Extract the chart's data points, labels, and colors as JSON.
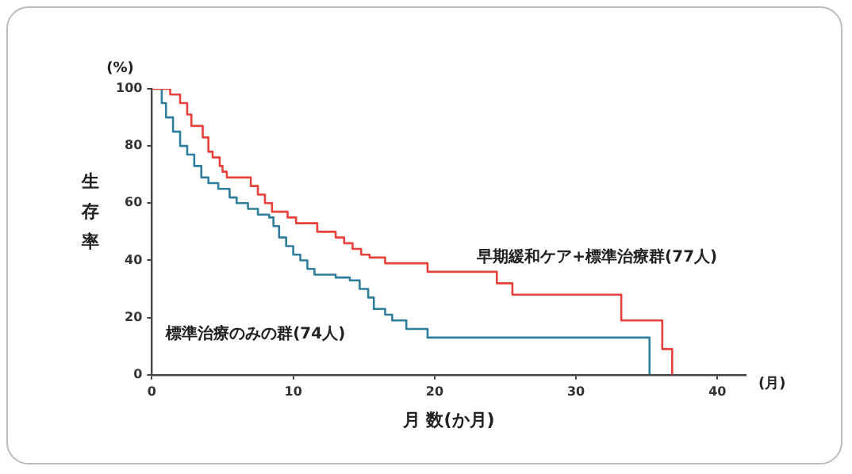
{
  "chart_data": {
    "type": "step",
    "xlabel": "月 数(か月)",
    "ylabel": "生存率",
    "annotations": [
      "(%)",
      "(月)"
    ],
    "xlim": [
      0,
      42
    ],
    "xticks": [
      0,
      10,
      20,
      30,
      40
    ],
    "ylim": [
      0,
      100
    ],
    "yticks": [
      0,
      20,
      40,
      60,
      80,
      100
    ],
    "grid": false,
    "legend": false,
    "marker": "none",
    "line_style": "solid",
    "series": [
      {
        "name": "早期緩和ケア+標準治療群(77人)",
        "color": "#e8403a",
        "x": [
          0,
          1.3,
          2,
          2.5,
          2.8,
          3.6,
          4,
          4.3,
          4.8,
          5,
          5.3,
          7,
          7.5,
          8,
          8.5,
          9.6,
          10.2,
          11.7,
          13,
          13.6,
          14.2,
          14.8,
          15.4,
          16.5,
          19.5,
          24.4,
          25.5,
          33.2,
          36.1,
          36.8
        ],
        "values": [
          100,
          98,
          95,
          91,
          87,
          83,
          78,
          76,
          73,
          71,
          69,
          66,
          63,
          60,
          57,
          55,
          53,
          50,
          48,
          46,
          44,
          42,
          41,
          39,
          36,
          32,
          28,
          19,
          9,
          0
        ]
      },
      {
        "name": "標準治療のみの群(74人)",
        "color": "#2e7d9a",
        "x": [
          0,
          0.7,
          1,
          1.5,
          2,
          2.5,
          3,
          3.5,
          4,
          4.7,
          5.5,
          6,
          6.8,
          7.5,
          8.3,
          8.6,
          9,
          9.5,
          10,
          10.5,
          11,
          11.5,
          13,
          14,
          14.7,
          15.3,
          15.7,
          16.5,
          17,
          18,
          19.5,
          35.2
        ],
        "values": [
          100,
          95,
          90,
          85,
          80,
          77,
          73,
          69,
          67,
          65,
          62,
          60,
          58,
          56,
          55,
          52,
          48,
          45,
          42,
          40,
          37,
          35,
          34,
          33,
          30,
          27,
          23,
          21,
          19,
          16,
          13,
          0
        ]
      }
    ]
  }
}
